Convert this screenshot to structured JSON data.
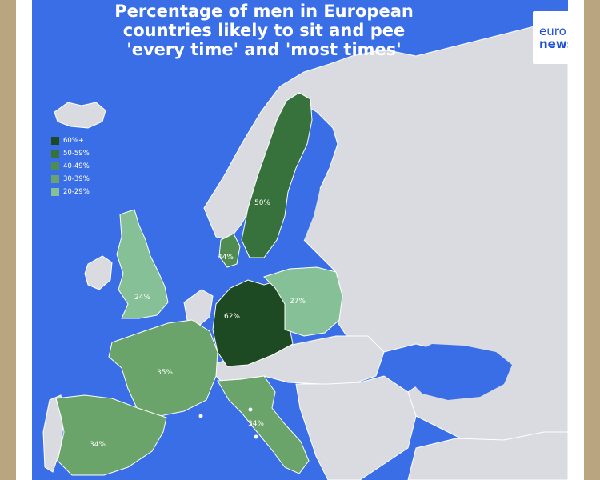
{
  "title_lines": [
    "Percentage of men in European",
    "countries likely to sit and pee",
    "'every time' and 'most times'"
  ],
  "brand": {
    "line1": "euro",
    "line2": "news."
  },
  "colors": {
    "sea": "#3a6ee6",
    "land": "#d9dbe0",
    "border": "#ffffff",
    "frame": "#ffffff",
    "backdrop": "#b9a57f"
  },
  "legend": [
    {
      "label": "60%+",
      "color": "#1d4a22"
    },
    {
      "label": "50-59%",
      "color": "#37723c"
    },
    {
      "label": "40-49%",
      "color": "#4f8c52"
    },
    {
      "label": "30-39%",
      "color": "#6aa46a"
    },
    {
      "label": "20-29%",
      "color": "#86c096"
    }
  ],
  "countries": [
    {
      "name": "Germany",
      "value": "62%",
      "color": "#1d4a22"
    },
    {
      "name": "Sweden",
      "value": "50%",
      "color": "#37723c"
    },
    {
      "name": "Denmark",
      "value": "44%",
      "color": "#4f8c52"
    },
    {
      "name": "France",
      "value": "35%",
      "color": "#6aa46a"
    },
    {
      "name": "Italy",
      "value": "34%",
      "color": "#6aa46a"
    },
    {
      "name": "Spain",
      "value": "34%",
      "color": "#6aa46a"
    },
    {
      "name": "Poland",
      "value": "27%",
      "color": "#86c096"
    },
    {
      "name": "United Kingdom",
      "value": "24%",
      "color": "#86c096"
    }
  ]
}
